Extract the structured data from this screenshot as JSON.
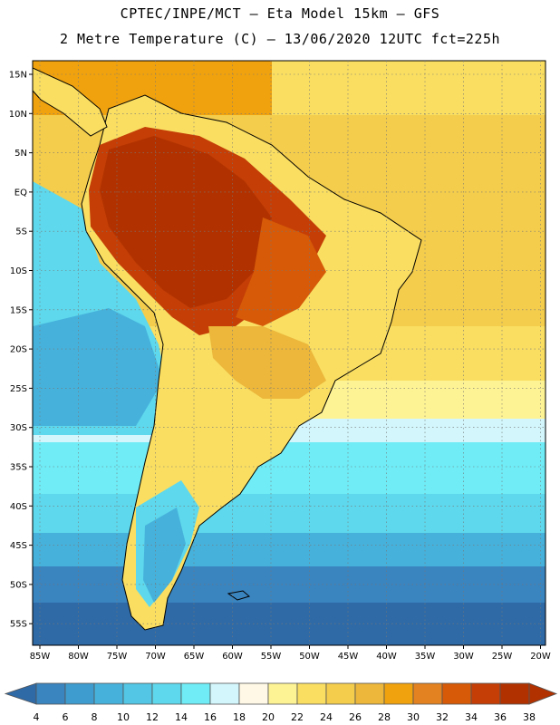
{
  "header": {
    "line1": "CPTEC/INPE/MCT –  Eta Model 15km – GFS",
    "line2": "2 Metre Temperature (C) – 13/06/2020 12UTC fct=225h"
  },
  "map": {
    "lat_labels": [
      "15N",
      "10N",
      "5N",
      "EQ",
      "5S",
      "10S",
      "15S",
      "20S",
      "25S",
      "30S",
      "35S",
      "40S",
      "45S",
      "50S",
      "55S"
    ],
    "lon_labels": [
      "85W",
      "80W",
      "75W",
      "70W",
      "65W",
      "60W",
      "55W",
      "50W",
      "45W",
      "40W",
      "35W",
      "30W",
      "25W",
      "20W"
    ]
  },
  "colorbar": {
    "labels": [
      "4",
      "6",
      "8",
      "10",
      "12",
      "14",
      "16",
      "18",
      "20",
      "22",
      "24",
      "26",
      "28",
      "30",
      "32",
      "34",
      "36",
      "38"
    ],
    "colors": [
      "#2f6aa6",
      "#3a84bf",
      "#3e9ccf",
      "#46b2dc",
      "#52c6e4",
      "#5ed8ec",
      "#6fecf6",
      "#d2f6fb",
      "#fff8e6",
      "#fef394",
      "#f9de62",
      "#f4cd4c",
      "#ecb73a",
      "#f0a20e",
      "#e38220",
      "#d65a08",
      "#c43e06",
      "#b13200"
    ]
  }
}
